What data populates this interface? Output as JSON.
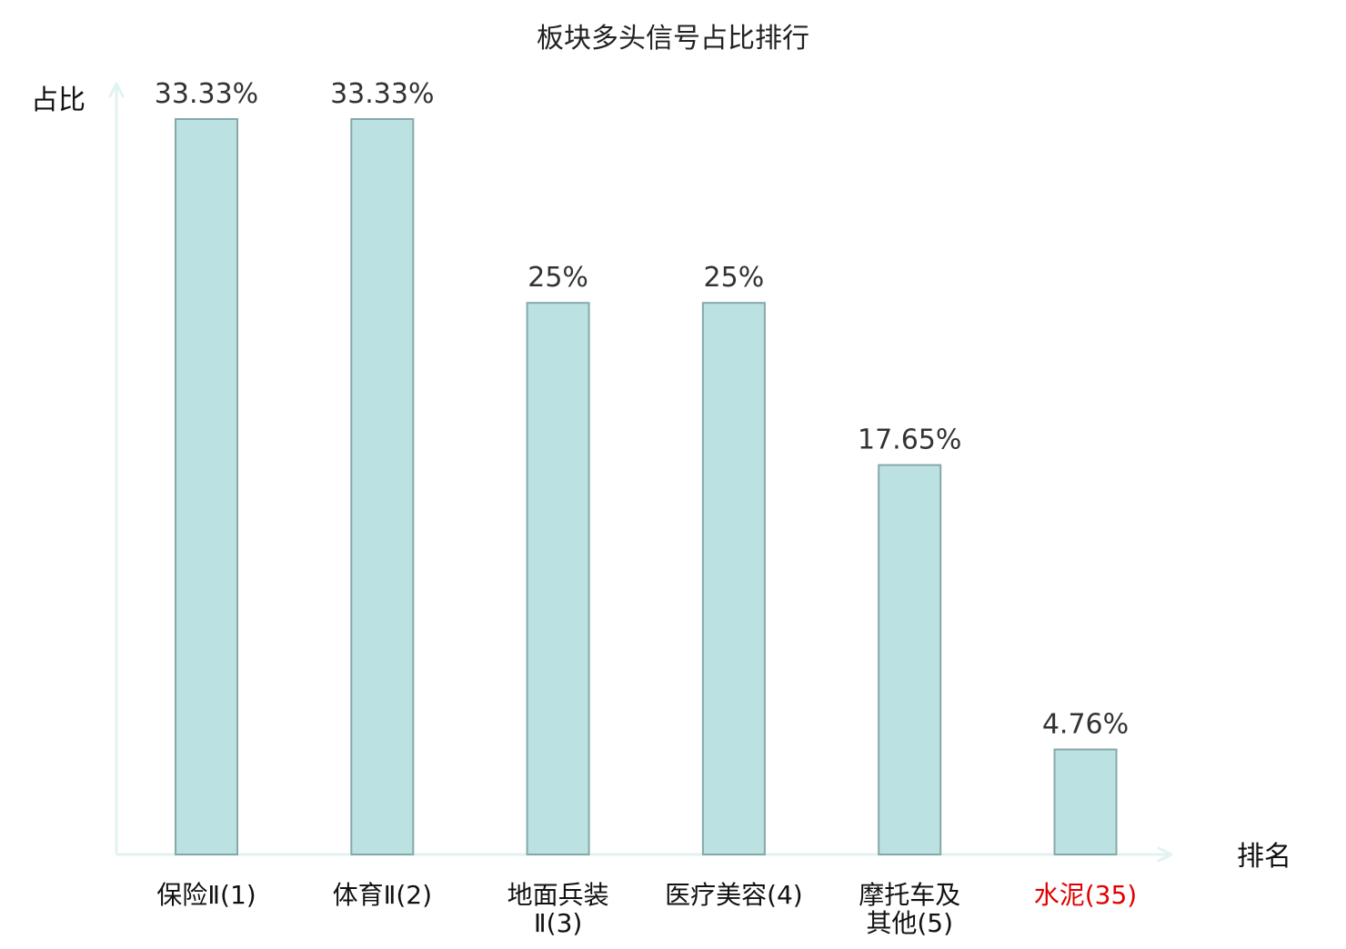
{
  "chart_data": {
    "type": "bar",
    "title": "板块多头信号占比排行",
    "xlabel": "排名",
    "ylabel": "占比",
    "categories": [
      "保险Ⅱ(1)",
      "体育Ⅱ(2)",
      "地面兵装Ⅱ(3)",
      "医疗美容(4)",
      "摩托车及其他(5)",
      "水泥(35)"
    ],
    "category_lines": [
      [
        "保险Ⅱ(1)"
      ],
      [
        "体育Ⅱ(2)"
      ],
      [
        "地面兵装",
        "Ⅱ(3)"
      ],
      [
        "医疗美容(4)"
      ],
      [
        "摩托车及",
        "其他(5)"
      ],
      [
        "水泥(35)"
      ]
    ],
    "values": [
      33.33,
      33.33,
      25,
      25,
      17.65,
      4.76
    ],
    "value_labels": [
      "33.33%",
      "33.33%",
      "25%",
      "25%",
      "17.65%",
      "4.76%"
    ],
    "highlighted_category_index": 5,
    "ylim": [
      0,
      35
    ],
    "grid": false,
    "legend": "none",
    "colors": {
      "bar_fill": "#bce1e3",
      "bar_stroke": "#86a8a9",
      "axis": "#e1f3f1",
      "label_text": "#333333",
      "title_text": "#222222",
      "highlight_text": "#e00000"
    }
  }
}
